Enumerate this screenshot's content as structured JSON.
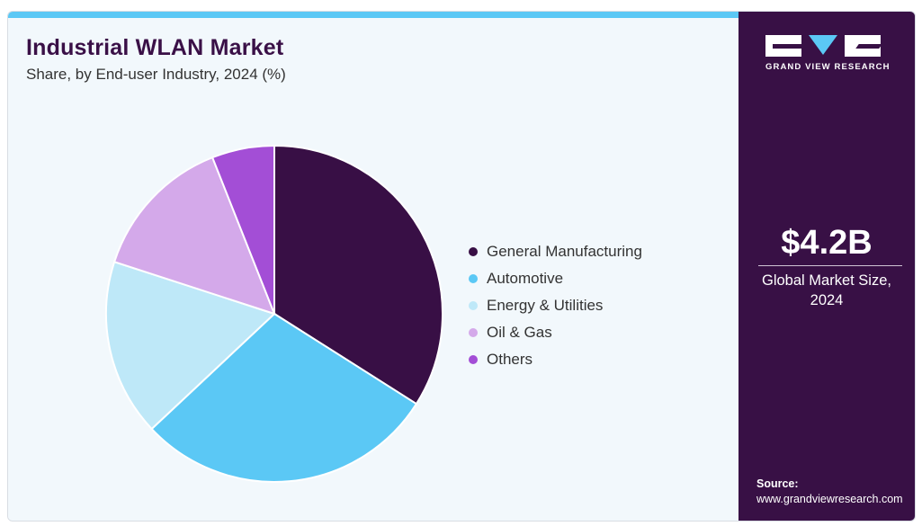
{
  "header": {
    "title": "Industrial WLAN Market",
    "subtitle": "Share, by End-user Industry, 2024 (%)"
  },
  "brand": {
    "name": "GRAND VIEW RESEARCH",
    "logo_icon": "gvr-logo-icon",
    "colors": {
      "panel": "#381045",
      "accent": "#5bc8f5"
    }
  },
  "stat": {
    "value": "$4.2B",
    "label_line1": "Global Market Size,",
    "label_line2": "2024"
  },
  "source": {
    "label": "Source:",
    "url": "www.grandviewresearch.com"
  },
  "chart_data": {
    "type": "pie",
    "categories": [
      "General Manufacturing",
      "Automotive",
      "Energy & Utilities",
      "Oil & Gas",
      "Others"
    ],
    "values": [
      34,
      29,
      17,
      14,
      6
    ],
    "colors": [
      "#380f45",
      "#5bc8f5",
      "#bee8f8",
      "#d4a9ea",
      "#a34ed6"
    ],
    "legend_position": "right"
  }
}
